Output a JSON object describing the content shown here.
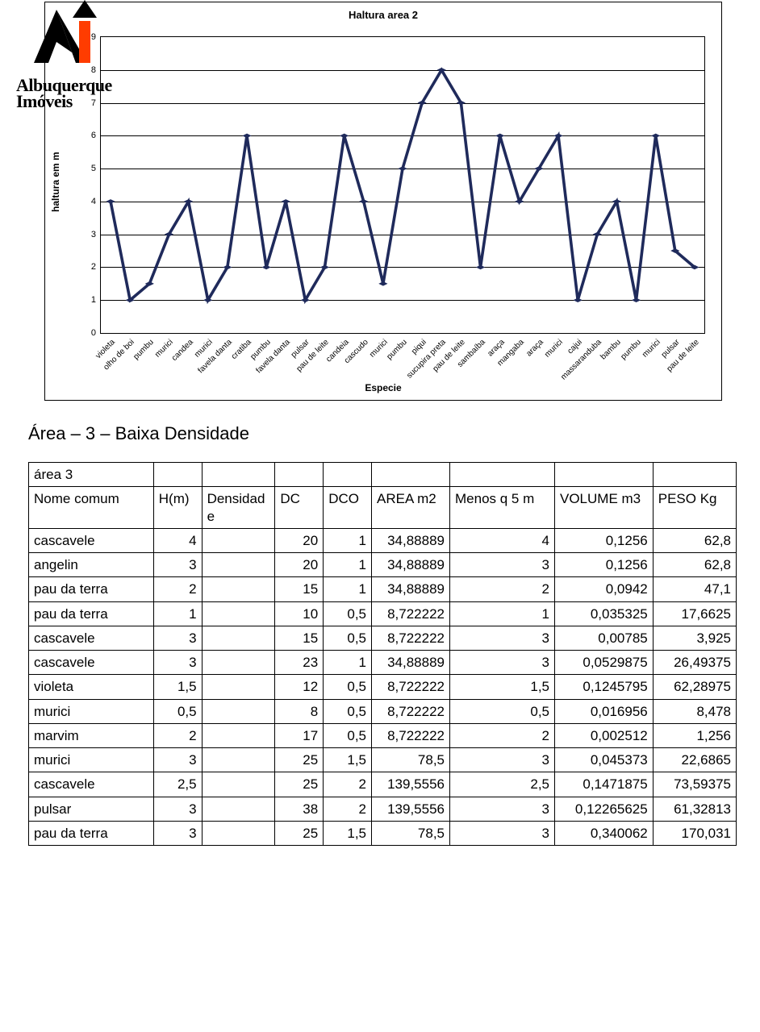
{
  "logo": {
    "line1": "Albuquerque",
    "line2": "Imóveis",
    "orange": "#ff3c00",
    "black": "#000000"
  },
  "chart": {
    "type": "line",
    "title": "Haltura area 2",
    "title_fontsize": 13,
    "x_axis_label": "Especie",
    "y_axis_label": "haltura em m",
    "label_fontsize": 12,
    "ylim": [
      0,
      9
    ],
    "ytick_step": 1,
    "line_color": "#1f2a5b",
    "marker": "diamond",
    "marker_fill": "#1f2a5b",
    "marker_size": 6,
    "line_width": 1.2,
    "grid_color": "#000000",
    "background_color": "#ffffff",
    "tick_fontsize": 10,
    "categories": [
      "violeta",
      "olho de boi",
      "pumbu",
      "murici",
      "candea",
      "murici",
      "favela danta",
      "cratiba",
      "pumbu",
      "favela danta",
      "pulsar",
      "pau de leite",
      "candeia",
      "cascudo",
      "murici",
      "pumbu",
      "piqui",
      "sucupira preta",
      "pau de leite",
      "sambaíba",
      "araça",
      "mangaba",
      "araça",
      "murici",
      "cajui",
      "massaranduba",
      "bambu",
      "pumbu",
      "murici",
      "pulsar",
      "pau de leite"
    ],
    "values": [
      4,
      1,
      1.5,
      3,
      4,
      1,
      2,
      6,
      2,
      4,
      1,
      2,
      6,
      4,
      1.5,
      5,
      7,
      8,
      7,
      2,
      6,
      4,
      5,
      6,
      1,
      3,
      4,
      1,
      6,
      2.5,
      2
    ]
  },
  "section_title": "Área – 3 – Baixa Densidade",
  "table": {
    "caption": "área 3",
    "columns": [
      "Nome comum",
      "H(m)",
      "Densidade",
      "DC",
      "DCO",
      "AREA m2",
      "Menos q 5 m",
      "VOLUME m3",
      "PESO Kg"
    ],
    "column_align": [
      "left",
      "right",
      "left",
      "right",
      "right",
      "right",
      "right",
      "right",
      "right"
    ],
    "rows": [
      [
        "cascavele",
        "4",
        "",
        "20",
        "1",
        "34,88889",
        "4",
        "0,1256",
        "62,8"
      ],
      [
        "angelin",
        "3",
        "",
        "20",
        "1",
        "34,88889",
        "3",
        "0,1256",
        "62,8"
      ],
      [
        "pau da terra",
        "2",
        "",
        "15",
        "1",
        "34,88889",
        "2",
        "0,0942",
        "47,1"
      ],
      [
        "pau da terra",
        "1",
        "",
        "10",
        "0,5",
        "8,722222",
        "1",
        "0,035325",
        "17,6625"
      ],
      [
        "cascavele",
        "3",
        "",
        "15",
        "0,5",
        "8,722222",
        "3",
        "0,00785",
        "3,925"
      ],
      [
        "cascavele",
        "3",
        "",
        "23",
        "1",
        "34,88889",
        "3",
        "0,0529875",
        "26,49375"
      ],
      [
        "violeta",
        "1,5",
        "",
        "12",
        "0,5",
        "8,722222",
        "1,5",
        "0,1245795",
        "62,28975"
      ],
      [
        "murici",
        "0,5",
        "",
        "8",
        "0,5",
        "8,722222",
        "0,5",
        "0,016956",
        "8,478"
      ],
      [
        "marvim",
        "2",
        "",
        "17",
        "0,5",
        "8,722222",
        "2",
        "0,002512",
        "1,256"
      ],
      [
        "murici",
        "3",
        "",
        "25",
        "1,5",
        "78,5",
        "3",
        "0,045373",
        "22,6865"
      ],
      [
        "cascavele",
        "2,5",
        "",
        "25",
        "2",
        "139,5556",
        "2,5",
        "0,1471875",
        "73,59375"
      ],
      [
        "pulsar",
        "3",
        "",
        "38",
        "2",
        "139,5556",
        "3",
        "0,12265625",
        "61,32813"
      ],
      [
        "pau da terra",
        "3",
        "",
        "25",
        "1,5",
        "78,5",
        "3",
        "0,340062",
        "170,031"
      ]
    ]
  }
}
